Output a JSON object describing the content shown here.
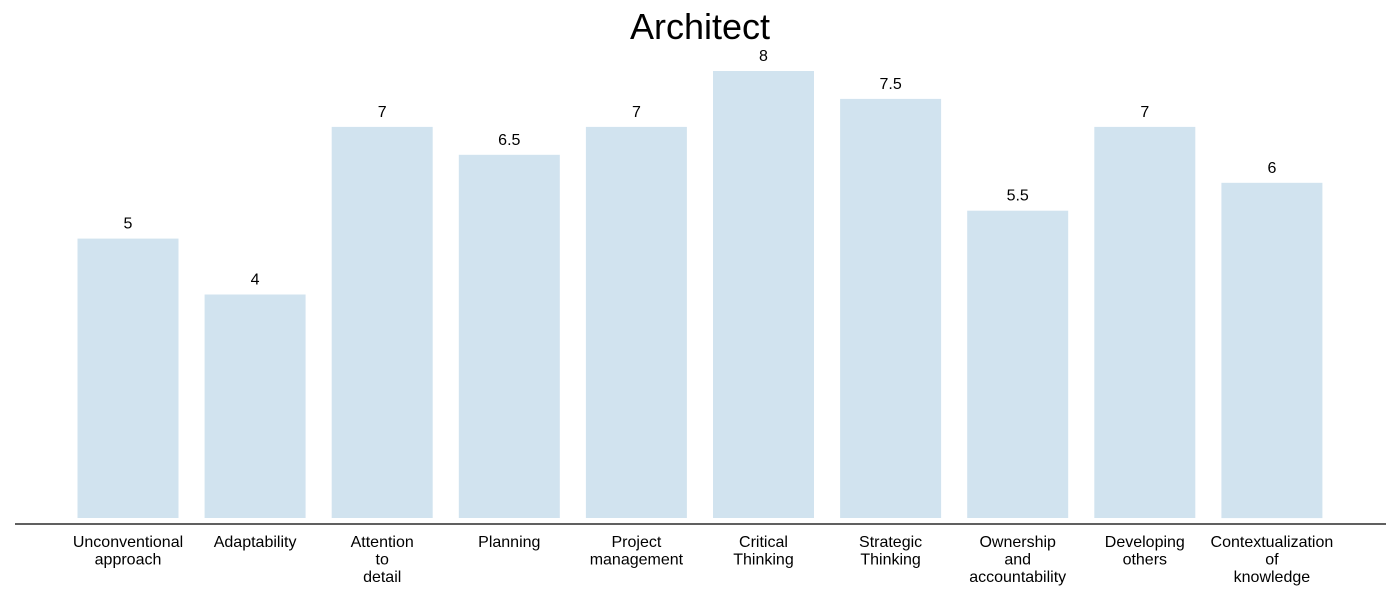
{
  "chart_data": {
    "type": "bar",
    "title": "Architect",
    "xlabel": "",
    "ylabel": "",
    "categories": [
      [
        "Unconventional",
        "approach"
      ],
      [
        "Adaptability"
      ],
      [
        "Attention",
        "to",
        "detail"
      ],
      [
        "Planning"
      ],
      [
        "Project",
        "management"
      ],
      [
        "Critical",
        "Thinking"
      ],
      [
        "Strategic",
        "Thinking"
      ],
      [
        "Ownership",
        "and",
        "accountability"
      ],
      [
        "Developing",
        "others"
      ],
      [
        "Contextualization",
        "of",
        "knowledge"
      ]
    ],
    "values": [
      5,
      4,
      7,
      6.5,
      7,
      8,
      7.5,
      5.5,
      7,
      6
    ],
    "value_labels": [
      "5",
      "4",
      "7",
      "6.5",
      "7",
      "8",
      "7.5",
      "5.5",
      "7",
      "6"
    ],
    "ylim": [
      0,
      8
    ],
    "grid": false,
    "legend": "none",
    "colors": {
      "bar": "#d1e3ef",
      "axis": "#000000",
      "text": "#000000"
    }
  }
}
